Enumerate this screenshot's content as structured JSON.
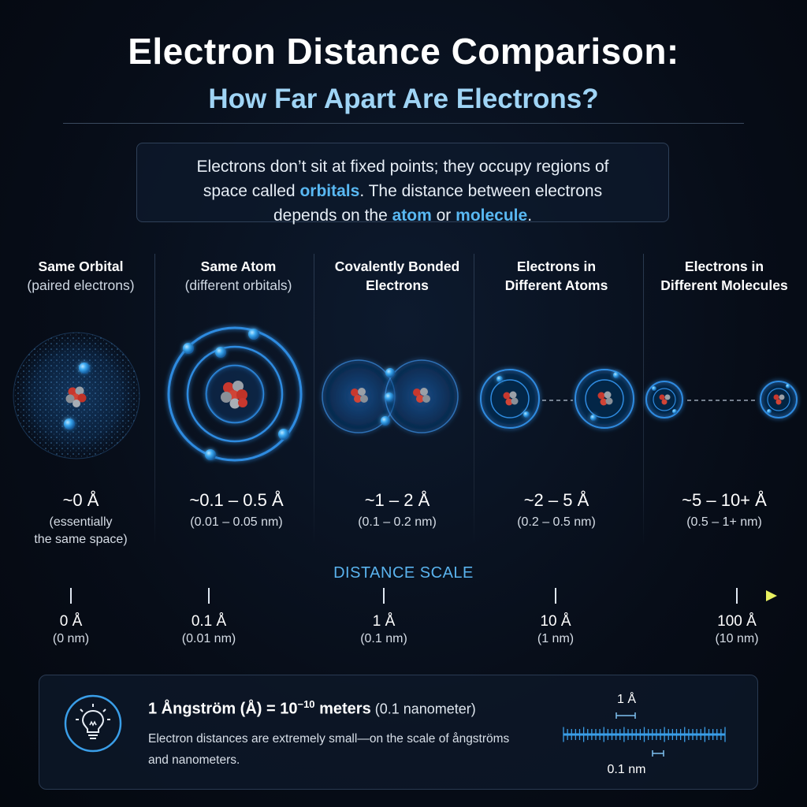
{
  "header": {
    "title": "Electron Distance Comparison:",
    "subtitle": "How Far Apart Are Electrons?"
  },
  "intro": {
    "line1": "Electrons don’t sit at fixed points; they occupy regions of",
    "line2a": "space called ",
    "line2_hl": "orbitals",
    "line2b": ". The distance between electrons",
    "line3a": "depends on the ",
    "line3_hl1": "atom",
    "line3b": " or ",
    "line3_hl2": "molecule",
    "line3c": "."
  },
  "columns": [
    {
      "title": "Same Orbital",
      "subtitle": "(paired electrons)",
      "distance": "~0 Å",
      "note1": "(essentially",
      "note2": "the same space)"
    },
    {
      "title": "Same Atom",
      "subtitle": "(different orbitals)",
      "distance": "~0.1 – 0.5 Å",
      "note1": "(0.01 – 0.05 nm)"
    },
    {
      "title": "Covalently Bonded",
      "subtitle": "Electrons",
      "distance": "~1 – 2 Å",
      "note1": "(0.1 – 0.2 nm)"
    },
    {
      "title": "Electrons in",
      "subtitle": "Different Atoms",
      "distance": "~2 – 5 Å",
      "note1": "(0.2 – 0.5 nm)"
    },
    {
      "title": "Electrons in",
      "subtitle": "Different Molecules",
      "distance": "~5 – 10+ Å",
      "note1": "(0.5 – 1+ nm)"
    }
  ],
  "scale": {
    "title": "DISTANCE SCALE",
    "ticks": [
      {
        "label": "0 Å",
        "nm": "(0 nm)"
      },
      {
        "label": "0.1 Å",
        "nm": "(0.01 nm)"
      },
      {
        "label": "1 Å",
        "nm": "(0.1 nm)"
      },
      {
        "label": "10 Å",
        "nm": "(1 nm)"
      },
      {
        "label": "100 Å",
        "nm": "(10 nm)"
      }
    ]
  },
  "info": {
    "title_a": "1 Ångström (Å) = 10",
    "title_exp": "−10",
    "title_b": " meters",
    "title_paren": " (0.1 nanometer)",
    "desc": "Electron distances are extremely small—on the scale of ångströms and nanometers.",
    "ruler_top": "1 Å",
    "ruler_bottom": "0.1 nm",
    "icon": "lightbulb-icon"
  },
  "colors": {
    "accent": "#59b8f2",
    "electron": "#3aa8f0",
    "scale_start": "#3f8fe0",
    "scale_end": "#e8f060"
  }
}
